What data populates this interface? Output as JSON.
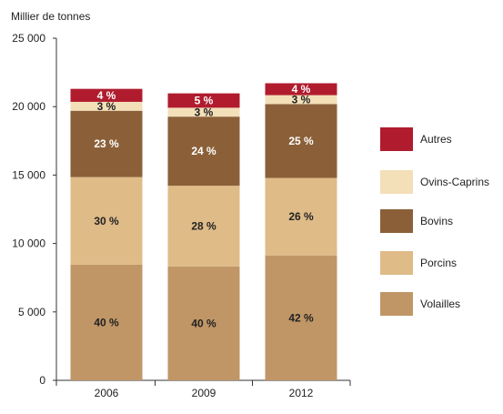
{
  "chart_data": {
    "type": "bar",
    "stacked": true,
    "ylabel": "Millier de tonnes",
    "xlabel": "",
    "ylim": [
      0,
      25000
    ],
    "yticks": [
      0,
      5000,
      10000,
      15000,
      20000,
      25000
    ],
    "ytick_labels": [
      "0",
      "5 000",
      "10 000",
      "15 000",
      "20 000",
      "25 000"
    ],
    "categories": [
      "2006",
      "2009",
      "2012"
    ],
    "legend_position": "right",
    "series": [
      {
        "name": "Volailles",
        "color": "#c09666",
        "label_color": "#222222",
        "values": [
          8450,
          8320,
          9130
        ],
        "labels": [
          "40 %",
          "40 %",
          "42 %"
        ]
      },
      {
        "name": "Porcins",
        "color": "#dfbb88",
        "label_color": "#222222",
        "values": [
          6400,
          5900,
          5660
        ],
        "labels": [
          "30 %",
          "28 %",
          "26 %"
        ]
      },
      {
        "name": "Bovins",
        "color": "#8b6038",
        "label_color": "#ffffff",
        "values": [
          4850,
          5050,
          5400
        ],
        "labels": [
          "23 %",
          "24 %",
          "25 %"
        ]
      },
      {
        "name": "Ovins-Caprins",
        "color": "#f3dfb8",
        "label_color": "#222222",
        "values": [
          650,
          650,
          650
        ],
        "labels": [
          "3 %",
          "3 %",
          "3 %"
        ]
      },
      {
        "name": "Autres",
        "color": "#b01c2e",
        "label_color": "#ffffff",
        "values": [
          950,
          1050,
          870
        ],
        "labels": [
          "4 %",
          "5 %",
          "4 %"
        ]
      }
    ],
    "legend_order": [
      "Autres",
      "Ovins-Caprins",
      "Bovins",
      "Porcins",
      "Volailles"
    ]
  }
}
